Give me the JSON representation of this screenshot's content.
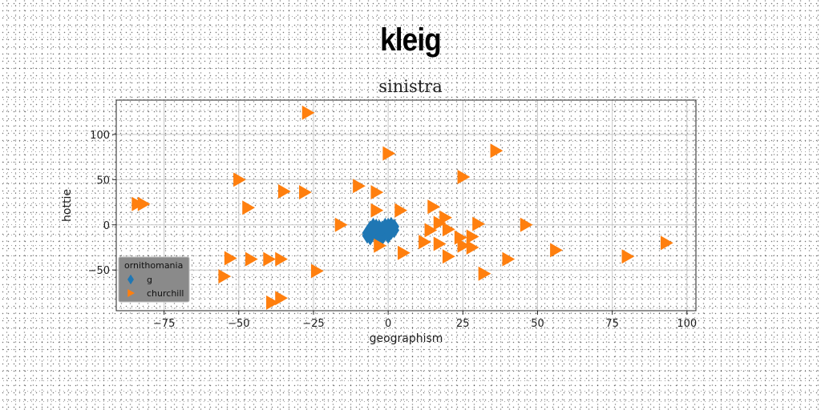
{
  "title": "kleig",
  "chart_data": {
    "type": "scatter",
    "title": "sinistra",
    "xlabel": "geographism",
    "ylabel": "hottie",
    "xlim": [
      -91,
      103
    ],
    "ylim": [
      -95,
      138
    ],
    "xticks": [
      -75,
      -50,
      -25,
      0,
      25,
      50,
      75,
      100
    ],
    "yticks": [
      -50,
      0,
      50,
      100
    ],
    "xtick_labels": [
      "−75",
      "−50",
      "−25",
      "0",
      "25",
      "50",
      "75",
      "100"
    ],
    "ytick_labels": [
      "−50",
      "0",
      "50",
      "100"
    ],
    "grid": true,
    "legend": {
      "title": "ornithomania",
      "placement": "lower-left"
    },
    "colors": {
      "g": "#1f77b4",
      "churchill": "#ff7f0e"
    },
    "series": [
      {
        "name": "g",
        "marker": "diamond",
        "points": [
          [
            -7,
            -12
          ],
          [
            -6,
            -6
          ],
          [
            -5,
            -1
          ],
          [
            -4,
            -10
          ],
          [
            -3,
            -3
          ],
          [
            -2,
            -14
          ],
          [
            -1,
            -5
          ],
          [
            0,
            -1
          ],
          [
            1,
            -8
          ],
          [
            2,
            -2
          ],
          [
            -6,
            -14
          ],
          [
            -4,
            -6
          ],
          [
            -2,
            -9
          ],
          [
            0,
            -12
          ],
          [
            1,
            -4
          ],
          [
            -3,
            -15
          ],
          [
            -5,
            -8
          ],
          [
            -1,
            -1
          ],
          [
            2,
            -6
          ],
          [
            -7,
            -9
          ],
          [
            -4,
            -2
          ],
          [
            0,
            -6
          ],
          [
            -2,
            -4
          ],
          [
            1,
            0
          ],
          [
            -6,
            -4
          ]
        ]
      },
      {
        "name": "churchill",
        "marker": "triangle-right",
        "points": [
          [
            -27,
            124
          ],
          [
            0,
            79
          ],
          [
            36,
            82
          ],
          [
            -50,
            50
          ],
          [
            25,
            53
          ],
          [
            -10,
            43
          ],
          [
            -4,
            36
          ],
          [
            -35,
            37
          ],
          [
            -28,
            36
          ],
          [
            -84,
            23
          ],
          [
            -82,
            23
          ],
          [
            -47,
            19
          ],
          [
            -4,
            16
          ],
          [
            4,
            16
          ],
          [
            15,
            20
          ],
          [
            19,
            8
          ],
          [
            17,
            2
          ],
          [
            -16,
            0
          ],
          [
            30,
            1
          ],
          [
            46,
            0
          ],
          [
            14,
            -6
          ],
          [
            20,
            -5
          ],
          [
            24,
            -14
          ],
          [
            28,
            -13
          ],
          [
            12,
            -19
          ],
          [
            17,
            -21
          ],
          [
            -3,
            -23
          ],
          [
            25,
            -23
          ],
          [
            28,
            -25
          ],
          [
            56,
            -28
          ],
          [
            5,
            -31
          ],
          [
            20,
            -35
          ],
          [
            40,
            -38
          ],
          [
            80,
            -35
          ],
          [
            93,
            -20
          ],
          [
            -53,
            -37
          ],
          [
            -46,
            -38
          ],
          [
            -40,
            -38
          ],
          [
            -36,
            -38
          ],
          [
            -24,
            -51
          ],
          [
            -55,
            -57
          ],
          [
            32,
            -54
          ],
          [
            -36,
            -81
          ],
          [
            -39,
            -86
          ]
        ]
      }
    ]
  }
}
